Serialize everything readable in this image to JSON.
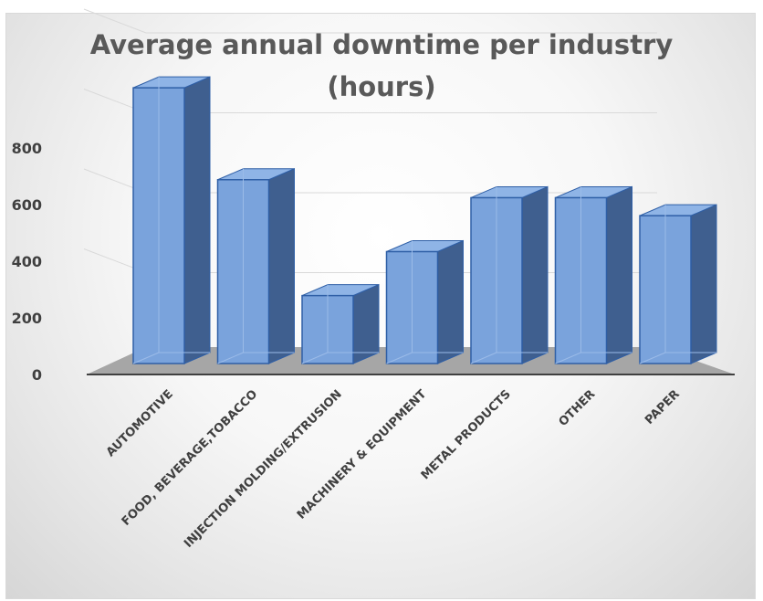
{
  "chart_data": {
    "type": "bar",
    "title": "Average annual downtime per industry\n(hours)",
    "categories": [
      "AUTOMOTIVE",
      "FOOD, BEVERAGE,TOBACCO",
      "INJECTION MOLDING/EXTRUSION",
      "MACHINERY & EQUIPMENT",
      "METAL PRODUCTS",
      "OTHER",
      "PAPER"
    ],
    "series": [
      {
        "values": [
          690,
          460,
          170,
          280,
          415,
          415,
          370
        ]
      }
    ],
    "ylim": [
      0,
      800
    ],
    "yticks": [
      "0",
      "200",
      "400",
      "600",
      "800"
    ],
    "grid": true,
    "legend": "none",
    "style": "3d-column",
    "colors": {
      "bar_front": "#7aa3dc",
      "bar_side": "#3f5f8f",
      "bar_top": "#8fb4e6",
      "bar_edge": "#2f5fa6",
      "floor": "#a6a6a6",
      "axis": "#404040",
      "gridline": "#d9d9d9"
    }
  }
}
